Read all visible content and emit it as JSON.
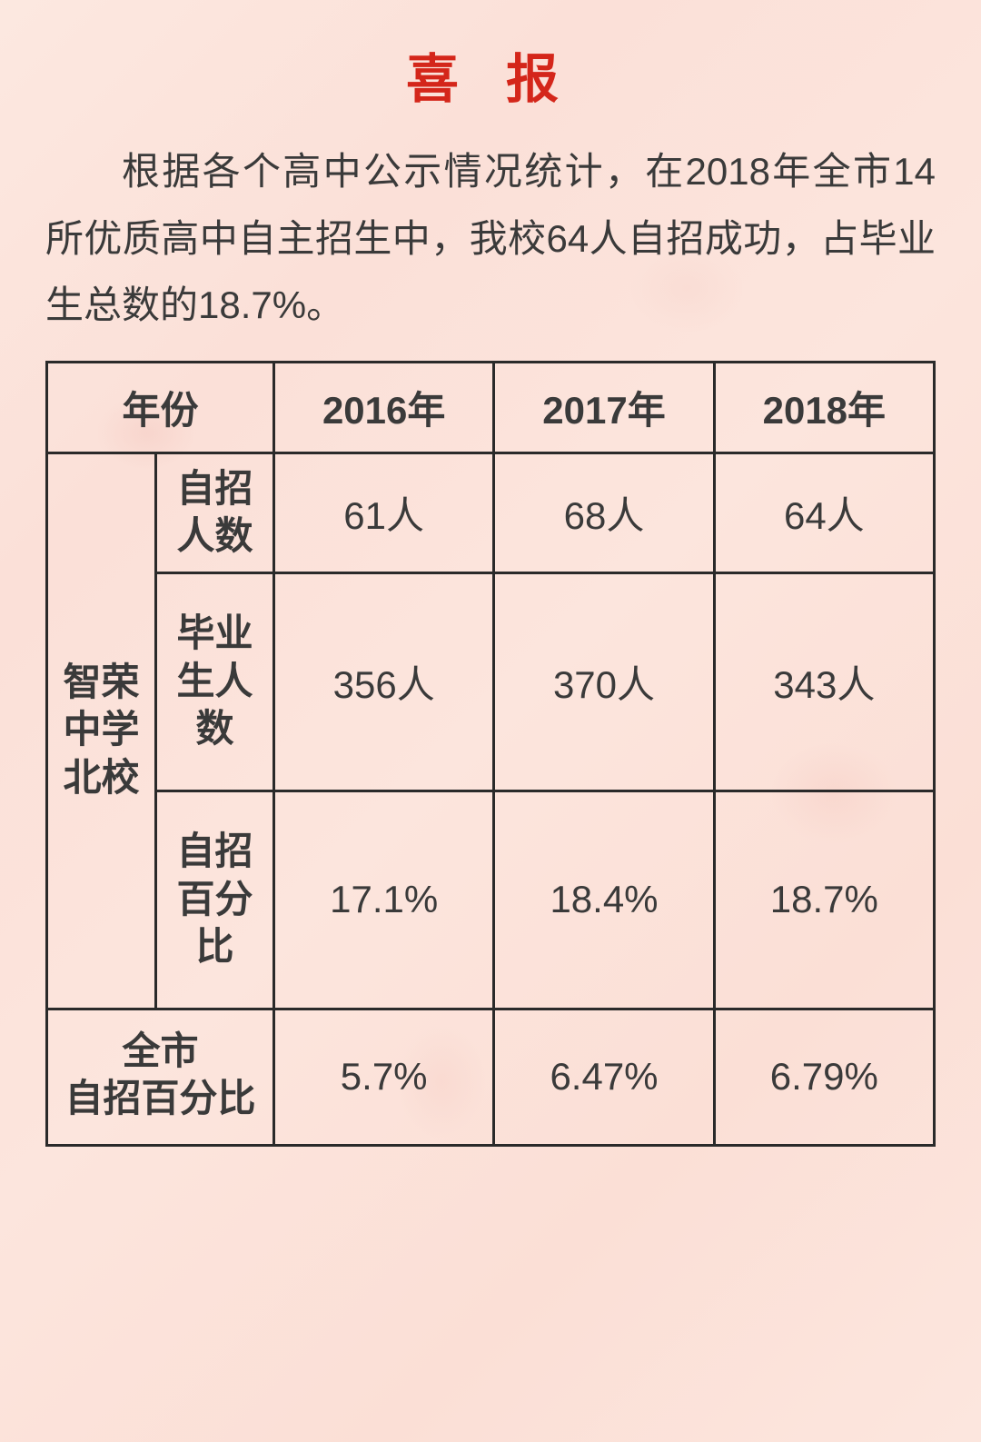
{
  "title": "喜  报",
  "intro": "根据各个高中公示情况统计，在2018年全市14所优质高中自主招生中，我校64人自招成功，占毕业生总数的18.7%。",
  "table": {
    "header_year_label": "年份",
    "years": [
      "2016年",
      "2017年",
      "2018年"
    ],
    "school_label": "智荣\n中学\n北校",
    "metrics": [
      {
        "label": "自招\n人数",
        "values": [
          "61人",
          "68人",
          "64人"
        ],
        "height": "short"
      },
      {
        "label": "毕业\n生人\n数",
        "values": [
          "356人",
          "370人",
          "343人"
        ],
        "height": "tall"
      },
      {
        "label": "自招\n百分\n比",
        "values": [
          "17.1%",
          "18.4%",
          "18.7%"
        ],
        "height": "tall"
      }
    ],
    "city_row": {
      "label": "全市\n自招百分比",
      "values": [
        "5.7%",
        "6.47%",
        "6.79%"
      ]
    }
  },
  "style": {
    "title_color": "#d4261a",
    "text_color": "#3a3a3a",
    "border_color": "#2a2a2a",
    "background_base": "#fce5dd",
    "title_fontsize": 58,
    "body_fontsize": 42,
    "border_width": 3
  }
}
